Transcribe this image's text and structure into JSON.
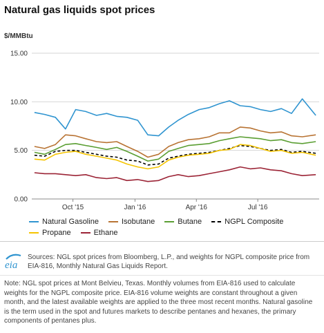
{
  "header": {
    "title": "Natural gas liquids spot prices",
    "unit": "$/MMBtu"
  },
  "chart_data": {
    "type": "line",
    "title": "Natural gas liquids spot prices",
    "ylabel": "$/MMBtu",
    "xlabel": "",
    "ylim": [
      0,
      15
    ],
    "yticks": [
      "0.00",
      "5.00",
      "10.00",
      "15.00"
    ],
    "xlim": [
      "2015-08-01",
      "2016-09-30"
    ],
    "xticks": [
      {
        "date": "2015-10-01",
        "label": "Oct '15"
      },
      {
        "date": "2016-01-01",
        "label": "Jan '16"
      },
      {
        "date": "2016-04-01",
        "label": "Apr '16"
      },
      {
        "date": "2016-07-01",
        "label": "Jul '16"
      }
    ],
    "grid": true,
    "legend_position": "bottom",
    "x": [
      "2015-08-05",
      "2015-08-20",
      "2015-09-05",
      "2015-09-20",
      "2015-10-05",
      "2015-10-20",
      "2015-11-05",
      "2015-11-20",
      "2015-12-05",
      "2015-12-20",
      "2016-01-05",
      "2016-01-20",
      "2016-02-05",
      "2016-02-20",
      "2016-03-05",
      "2016-03-20",
      "2016-04-05",
      "2016-04-20",
      "2016-05-05",
      "2016-05-20",
      "2016-06-05",
      "2016-06-20",
      "2016-07-05",
      "2016-07-20",
      "2016-08-05",
      "2016-08-20",
      "2016-09-05",
      "2016-09-25"
    ],
    "series": [
      {
        "name": "Natural Gasoline",
        "color": "#2f94d0",
        "values": [
          8.9,
          8.7,
          8.4,
          7.2,
          9.2,
          9.0,
          8.6,
          8.8,
          8.5,
          8.4,
          8.1,
          6.6,
          6.5,
          7.4,
          8.1,
          8.7,
          9.2,
          9.4,
          9.8,
          10.1,
          9.6,
          9.5,
          9.2,
          9.0,
          9.3,
          8.8,
          10.3,
          8.6
        ]
      },
      {
        "name": "Isobutane",
        "color": "#b87333",
        "values": [
          5.4,
          5.2,
          5.6,
          6.6,
          6.5,
          6.2,
          5.9,
          5.8,
          5.9,
          5.4,
          4.9,
          4.3,
          4.6,
          5.4,
          5.8,
          6.1,
          6.2,
          6.4,
          6.8,
          6.8,
          7.4,
          7.3,
          7.0,
          6.8,
          6.9,
          6.5,
          6.4,
          6.6
        ]
      },
      {
        "name": "Butane",
        "color": "#5a9e32",
        "values": [
          4.8,
          4.6,
          5.1,
          5.6,
          5.7,
          5.5,
          5.3,
          5.1,
          5.3,
          4.9,
          4.4,
          3.9,
          4.1,
          4.9,
          5.2,
          5.5,
          5.6,
          5.7,
          6.0,
          6.2,
          6.4,
          6.3,
          6.2,
          6.0,
          6.1,
          5.8,
          5.7,
          5.9
        ]
      },
      {
        "name": "NGPL Composite",
        "color": "#000000",
        "dashed": true,
        "values": [
          4.5,
          4.4,
          4.9,
          5.0,
          5.0,
          4.8,
          4.6,
          4.4,
          4.3,
          4.0,
          3.9,
          3.5,
          3.6,
          4.2,
          4.4,
          4.6,
          4.7,
          4.8,
          5.0,
          5.2,
          5.5,
          5.4,
          5.2,
          5.0,
          5.1,
          4.8,
          4.9,
          4.7
        ]
      },
      {
        "name": "Propane",
        "color": "#f5c400",
        "values": [
          4.1,
          4.0,
          4.6,
          4.8,
          4.9,
          4.6,
          4.4,
          4.2,
          4.0,
          3.6,
          3.3,
          3.1,
          3.3,
          4.0,
          4.3,
          4.5,
          4.6,
          4.7,
          5.0,
          5.1,
          5.6,
          5.5,
          5.2,
          4.9,
          5.0,
          4.7,
          4.8,
          4.5
        ]
      },
      {
        "name": "Ethane",
        "color": "#9b2335",
        "values": [
          2.7,
          2.6,
          2.6,
          2.5,
          2.4,
          2.5,
          2.2,
          2.1,
          2.2,
          1.9,
          2.0,
          1.8,
          1.9,
          2.3,
          2.5,
          2.3,
          2.4,
          2.6,
          2.8,
          3.0,
          3.3,
          3.1,
          3.2,
          3.0,
          2.9,
          2.6,
          2.4,
          2.5
        ]
      }
    ]
  },
  "legend_rows": [
    [
      "Natural Gasoline",
      "Isobutane",
      "Butane",
      "NGPL Composite"
    ],
    [
      "Propane",
      "Ethane"
    ]
  ],
  "logo": {
    "label": "eia",
    "color": "#2f94d0"
  },
  "sources": "Sources: NGL spot prices from Bloomberg, L.P., and weights for NGPL composite price from EIA-816, Monthly Natural Gas Liquids Report.",
  "notes": "Note: NGL spot prices at Mont Belvieu, Texas. Monthly volumes from EIA-816 used to calculate weights for the NGPL composite price. EIA-816 volume weights are constant throughout a given month, and the latest available weights are applied to the three most recent months. Natural gasoline is the term used in the spot and futures markets to describe pentanes and hexanes, the primary components of pentanes plus."
}
